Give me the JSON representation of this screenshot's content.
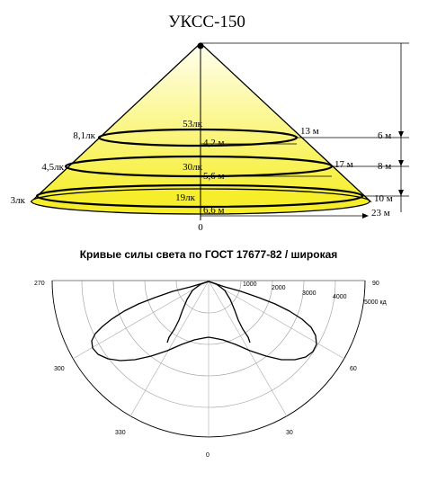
{
  "cone": {
    "title": "УКСС-150",
    "origin_label": "0",
    "levels": [
      {
        "center_lux": "53лк",
        "edge_lux": "8,1лк",
        "radius": "4,2 м",
        "diameter": "13 м",
        "height": "6 м"
      },
      {
        "center_lux": "30лк",
        "edge_lux": "4,5лк",
        "radius": "5,6 м",
        "diameter": "17 м",
        "height": "8 м"
      },
      {
        "center_lux": "19лк",
        "edge_lux": "3лк",
        "radius": "6,6 м",
        "diameter": "23 м",
        "height": "10 м"
      }
    ],
    "colors": {
      "fill_top": "#fffff0",
      "fill_bottom": "#f6ee2a",
      "line": "#000000"
    }
  },
  "polar": {
    "title": "Кривые силы света по ГОСТ 17677-82 / широкая",
    "radial_ticks": [
      "1000",
      "2000",
      "3000",
      "4000",
      "5000 кд"
    ],
    "angle_labels": {
      "left_top": "270",
      "right_top": "90",
      "left_mid": "300",
      "right_mid": "60",
      "left_low": "330",
      "right_low": "30",
      "bottom": "0"
    }
  }
}
